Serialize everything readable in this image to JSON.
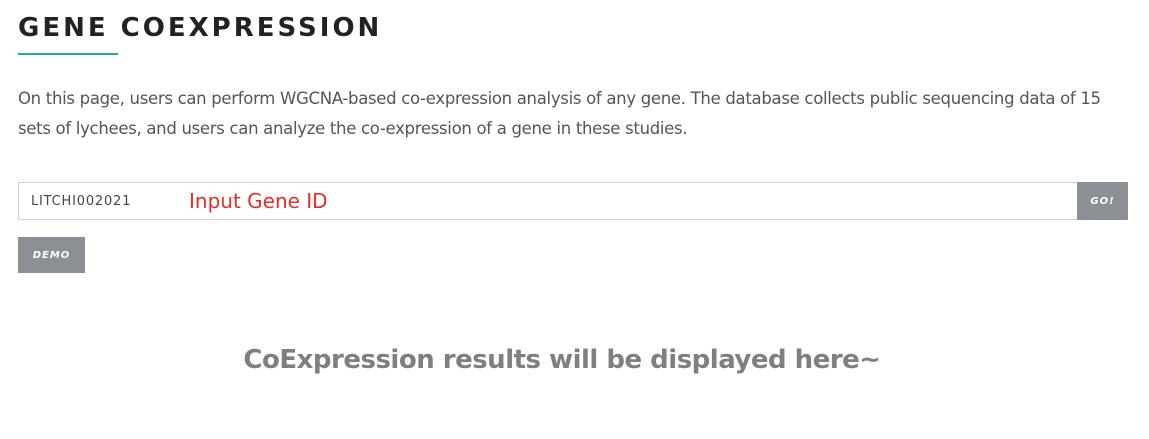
{
  "header": {
    "title": "GENE COEXPRESSION"
  },
  "colors": {
    "accent": "#1aae9a",
    "button_bg": "#8a9096",
    "annotation": "#e0302b",
    "placeholder_text": "#7f7f7f"
  },
  "intro": {
    "text": "On this page, users can perform WGCNA-based co-expression analysis of any gene. The database collects public sequencing data of 15 sets of lychees, and users can analyze the co-expression of a gene in these studies."
  },
  "search": {
    "value": "LITCHI002021",
    "annotation": "Input Gene ID",
    "go_label": "GO!",
    "demo_label": "DEMO"
  },
  "results": {
    "placeholder": "CoExpression results will be displayed here~"
  }
}
